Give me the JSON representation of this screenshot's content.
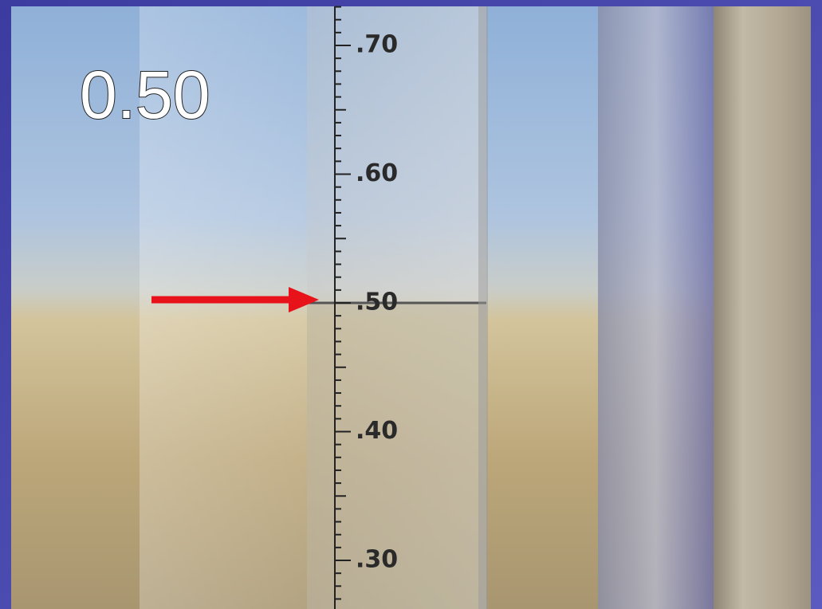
{
  "reading": "0.50",
  "scale_labels": [
    ".70",
    ".60",
    ".50",
    ".40",
    ".30"
  ]
}
